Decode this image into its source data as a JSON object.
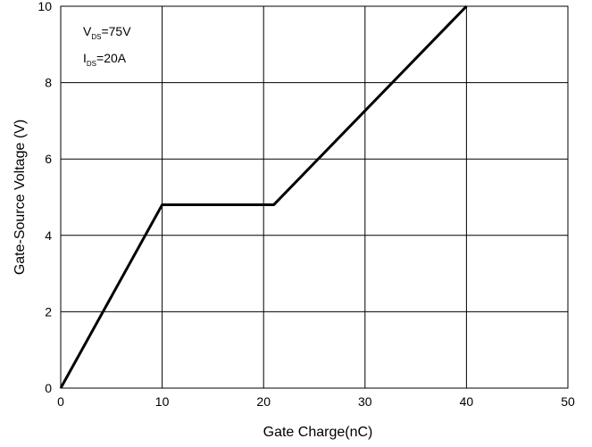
{
  "chart_data": {
    "type": "line",
    "title": "",
    "xlabel": "Gate Charge(nC)",
    "ylabel": "Gate-Source Voltage (V)",
    "xlim": [
      0,
      50
    ],
    "ylim": [
      0,
      10
    ],
    "xticks": [
      0,
      10,
      20,
      30,
      40,
      50
    ],
    "yticks": [
      0,
      2,
      4,
      6,
      8,
      10
    ],
    "grid": true,
    "series": [
      {
        "x": [
          0,
          10,
          21,
          40
        ],
        "y": [
          0,
          4.8,
          4.8,
          10
        ]
      }
    ],
    "annotations": {
      "vds": {
        "main": "V",
        "sub": "DS",
        "value": "=75V"
      },
      "ids": {
        "main": "I",
        "sub": "DS",
        "value": "=20A"
      }
    },
    "colors": {
      "line": "#000000",
      "grid": "#000000",
      "background": "#ffffff"
    }
  }
}
